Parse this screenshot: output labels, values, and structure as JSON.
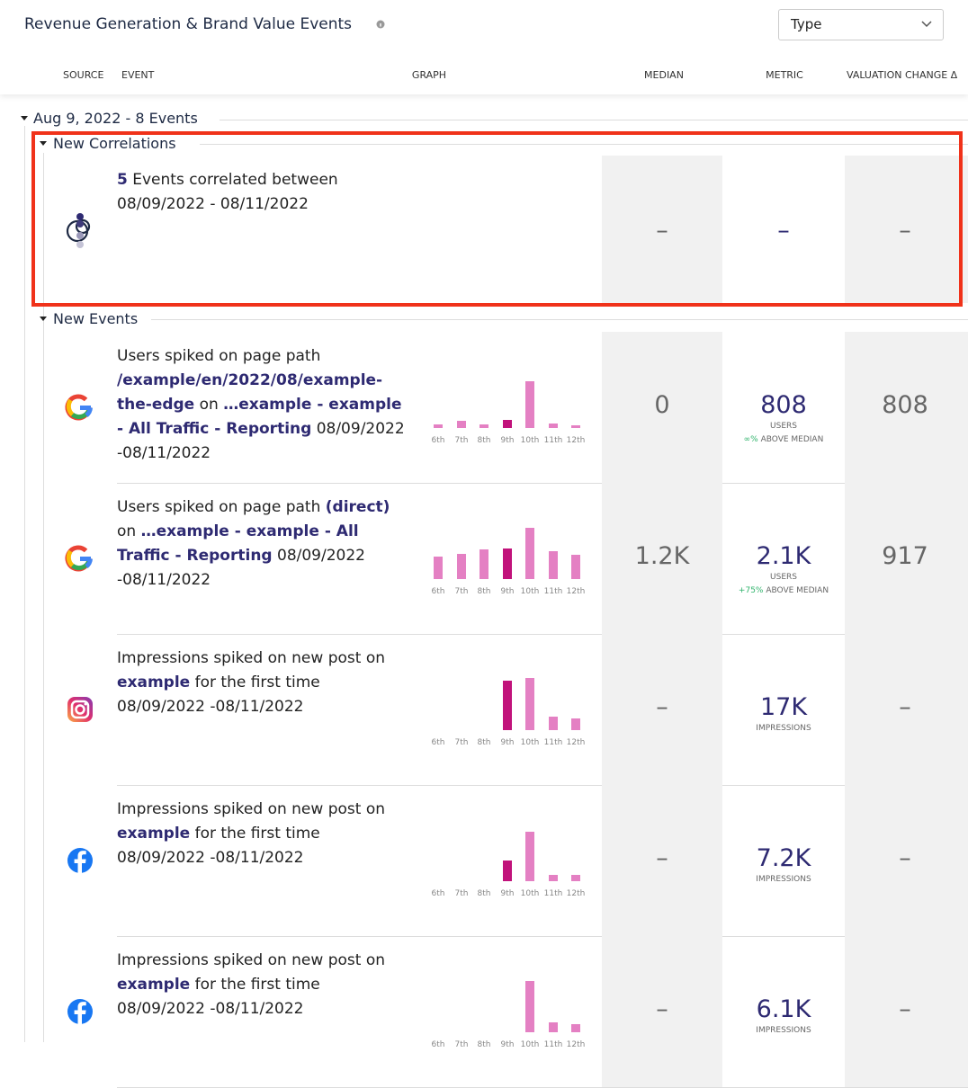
{
  "header": {
    "title": "Revenue Generation & Brand Value Events",
    "filter": "Type"
  },
  "columns": [
    "SOURCE",
    "EVENT",
    "GRAPH",
    "MEDIAN",
    "METRIC",
    "VALUATION CHANGE Δ"
  ],
  "group": {
    "label": "Aug 9, 2022 - 8 Events"
  },
  "graph": {
    "days": [
      "6th",
      "7th",
      "8th",
      "9th",
      "10th",
      "11th",
      "12th"
    ],
    "color": "#e480c3",
    "highlight_color": "#c1127b",
    "highlight": "9th"
  },
  "sections": [
    {
      "label": "New Correlations",
      "rows": [
        {
          "source": "correlation",
          "event": [
            {
              "text": "5",
              "bold": true
            },
            {
              "text": " Events correlated between 08/09/2022 - 08/11/2022",
              "bold": false
            }
          ],
          "median": "–",
          "metric": {
            "value": "–"
          },
          "valuation": "–"
        }
      ]
    },
    {
      "label": "New Events",
      "rows": [
        {
          "source": "google",
          "event": [
            {
              "text": "Users spiked on page path ",
              "bold": false
            },
            {
              "text": "/example/en/2022/08/example-the-edge",
              "bold": true
            },
            {
              "text": " on ",
              "bold": false
            },
            {
              "text": "…example - example - All Traffic - Reporting",
              "bold": true
            },
            {
              "text": " 08/09/2022 -08/11/2022",
              "bold": false
            }
          ],
          "graph": [
            4,
            8,
            4,
            9,
            52,
            5,
            3
          ],
          "median": "0",
          "metric": {
            "value": "808",
            "unit": "USERS",
            "change": "∞%",
            "change_label": "ABOVE MEDIAN"
          },
          "valuation": "808"
        },
        {
          "source": "google",
          "event": [
            {
              "text": "Users spiked on page path ",
              "bold": false
            },
            {
              "text": "(direct)",
              "bold": true
            },
            {
              "text": " on ",
              "bold": false
            },
            {
              "text": "…example - example - All Traffic - Reporting",
              "bold": true
            },
            {
              "text": " 08/09/2022 -08/11/2022",
              "bold": false
            }
          ],
          "graph": [
            25,
            28,
            33,
            34,
            57,
            31,
            27
          ],
          "median": "1.2K",
          "metric": {
            "value": "2.1K",
            "unit": "USERS",
            "change": "+75%",
            "change_label": "ABOVE MEDIAN"
          },
          "valuation": "917"
        },
        {
          "source": "instagram",
          "event": [
            {
              "text": "Impressions spiked on new post on ",
              "bold": false
            },
            {
              "text": "example",
              "bold": true
            },
            {
              "text": " for the first time 08/09/2022 -08/11/2022",
              "bold": false
            }
          ],
          "graph": [
            null,
            null,
            null,
            55,
            58,
            15,
            13
          ],
          "median": "–",
          "metric": {
            "value": "17K",
            "unit": "IMPRESSIONS"
          },
          "valuation": "–"
        },
        {
          "source": "facebook",
          "event": [
            {
              "text": "Impressions spiked on new post on ",
              "bold": false
            },
            {
              "text": "example",
              "bold": true
            },
            {
              "text": " for the first time 08/09/2022 -08/11/2022",
              "bold": false
            }
          ],
          "graph": [
            null,
            null,
            null,
            23,
            55,
            7,
            7
          ],
          "median": "–",
          "metric": {
            "value": "7.2K",
            "unit": "IMPRESSIONS"
          },
          "valuation": "–"
        },
        {
          "source": "facebook",
          "event": [
            {
              "text": "Impressions spiked on new post on ",
              "bold": false
            },
            {
              "text": "example",
              "bold": true
            },
            {
              "text": " for the first time 08/09/2022 -08/11/2022",
              "bold": false
            }
          ],
          "graph": [
            null,
            null,
            null,
            null,
            57,
            11,
            9
          ],
          "median": "–",
          "metric": {
            "value": "6.1K",
            "unit": "IMPRESSIONS"
          },
          "valuation": "–"
        }
      ]
    }
  ]
}
